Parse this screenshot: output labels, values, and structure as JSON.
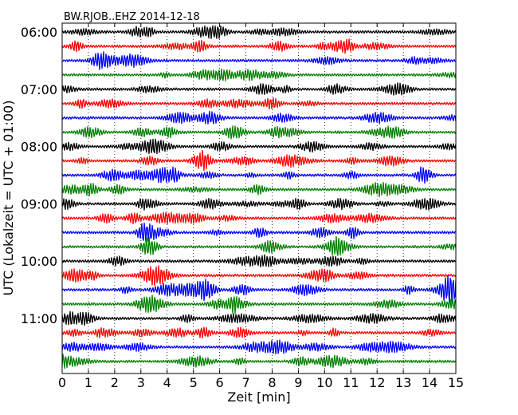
{
  "chart_data": {
    "type": "line",
    "title": "BW.RJOB..EHZ 2014-12-18",
    "xlabel": "Zeit  [min]",
    "ylabel": "UTC (Lokalzeit = UTC + 01:00)",
    "xlim": [
      0,
      15
    ],
    "xticks": [
      0,
      1,
      2,
      3,
      4,
      5,
      6,
      7,
      8,
      9,
      10,
      11,
      12,
      13,
      14,
      15
    ],
    "grid_x": true,
    "line_minutes": 15,
    "row_start_times": [
      "06:00",
      "06:15",
      "06:30",
      "06:45",
      "07:00",
      "07:15",
      "07:30",
      "07:45",
      "08:00",
      "08:15",
      "08:30",
      "08:45",
      "09:00",
      "09:15",
      "09:30",
      "09:45",
      "10:00",
      "10:15",
      "10:30",
      "10:45",
      "11:00",
      "11:15",
      "11:30",
      "11:45"
    ],
    "ytick_labels": [
      "06:00",
      "07:00",
      "08:00",
      "09:00",
      "10:00",
      "11:00"
    ],
    "colors": [
      "#000000",
      "#ff0000",
      "#0000ff",
      "#008000"
    ]
  }
}
